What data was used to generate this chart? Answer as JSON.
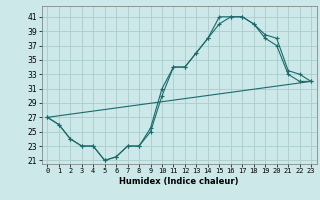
{
  "title": "",
  "xlabel": "Humidex (Indice chaleur)",
  "bg_color": "#cce8e8",
  "grid_color": "#aacccc",
  "line_color": "#1a6b6b",
  "xlim": [
    -0.5,
    23.5
  ],
  "ylim": [
    20.5,
    42.5
  ],
  "yticks": [
    21,
    23,
    25,
    27,
    29,
    31,
    33,
    35,
    37,
    39,
    41
  ],
  "xticks": [
    0,
    1,
    2,
    3,
    4,
    5,
    6,
    7,
    8,
    9,
    10,
    11,
    12,
    13,
    14,
    15,
    16,
    17,
    18,
    19,
    20,
    21,
    22,
    23
  ],
  "line1_x": [
    0,
    1,
    2,
    3,
    4,
    5,
    6,
    7,
    8,
    9,
    10,
    11,
    12,
    13,
    14,
    15,
    16,
    17,
    18,
    19,
    20,
    21,
    22,
    23
  ],
  "line1_y": [
    27,
    26,
    24,
    23,
    23,
    21,
    21.5,
    23,
    23,
    25,
    30,
    34,
    34,
    36,
    38,
    40,
    41,
    41,
    40,
    38,
    37,
    33,
    32,
    32
  ],
  "line2_x": [
    0,
    1,
    2,
    3,
    4,
    5,
    6,
    7,
    8,
    9,
    10,
    11,
    12,
    13,
    14,
    15,
    16,
    17,
    18,
    19,
    20,
    21,
    22,
    23
  ],
  "line2_y": [
    27,
    26,
    24,
    23,
    23,
    21,
    21.5,
    23,
    23,
    25.5,
    31,
    34,
    34,
    36,
    38,
    41,
    41,
    41,
    40,
    38.5,
    38,
    33.5,
    33,
    32
  ],
  "line3_x": [
    0,
    23
  ],
  "line3_y": [
    27,
    32
  ]
}
